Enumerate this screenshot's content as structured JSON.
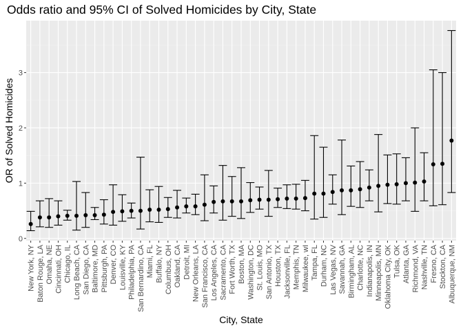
{
  "chart_data": {
    "type": "scatter",
    "title": "Odds ratio and 95% CI of Solved Homicides by City, State",
    "xlabel": "City, State",
    "ylabel": "OR of Solved Homicides",
    "ylim": [
      -0.04,
      3.94
    ],
    "yticks": [
      0,
      1,
      2,
      3
    ],
    "grid": true,
    "legend": "none",
    "colors": {
      "panel": "#ebebeb",
      "grid_major": "#ffffff",
      "grid_minor": "#f3f3f3",
      "marks": "#000000",
      "tick_text": "#4d4d4d"
    },
    "categories": [
      "New York, NY",
      "Baton Rouge, LA",
      "Omaha, NE",
      "Cincinnati, OH",
      "Chicago, IL",
      "Long Beach, CA",
      "San Diego, CA",
      "Baltimore, MD",
      "Pittsburgh, PA",
      "Denver, CO",
      "Louisville, KY",
      "Philadelphia, PA",
      "San Bernardino, CA",
      "Miami, FL",
      "Buffalo, NY",
      "Columbus, OH",
      "Oakland, CA",
      "Detroit, MI",
      "New Orleans, LA",
      "San Francisco, CA",
      "Los Angeles, CA",
      "Sacramento, CA",
      "Fort Worth, TX",
      "Boston, MA",
      "Washington, DC",
      "St. Louis, MO",
      "San Antonio, TX",
      "Houston, TX",
      "Jacksonville, FL",
      "Memphis, TN",
      "Milwaukee, wI",
      "Tampa, FL",
      "Durham, NC",
      "Las Vegas, NV",
      "Savannah, GA",
      "Birmingham, AL",
      "Charlotte, NC",
      "Indianapolis, IN",
      "Minneapolis, MN",
      "Oklahoma City, OK",
      "Tulsa, OK",
      "Atlanta, GA",
      "Richmond, VA",
      "Nashville, TN",
      "Fresno, CA",
      "Stockton, CA",
      "Albuquerque, NM"
    ],
    "estimate": [
      0.26,
      0.38,
      0.38,
      0.4,
      0.41,
      0.41,
      0.42,
      0.42,
      0.43,
      0.48,
      0.49,
      0.5,
      0.5,
      0.52,
      0.52,
      0.53,
      0.56,
      0.58,
      0.58,
      0.61,
      0.66,
      0.67,
      0.67,
      0.67,
      0.69,
      0.7,
      0.7,
      0.71,
      0.72,
      0.72,
      0.73,
      0.81,
      0.81,
      0.84,
      0.87,
      0.87,
      0.89,
      0.92,
      0.95,
      0.97,
      0.98,
      1.0,
      1.01,
      1.03,
      1.34,
      1.35,
      1.77
    ],
    "ci_low": [
      0.14,
      0.21,
      0.2,
      0.24,
      0.33,
      0.15,
      0.2,
      0.34,
      0.26,
      0.24,
      0.31,
      0.37,
      0.17,
      0.3,
      0.29,
      0.38,
      0.37,
      0.46,
      0.43,
      0.32,
      0.46,
      0.33,
      0.4,
      0.36,
      0.47,
      0.53,
      0.4,
      0.56,
      0.54,
      0.53,
      0.5,
      0.35,
      0.38,
      0.62,
      0.43,
      0.58,
      0.56,
      0.68,
      0.48,
      0.63,
      0.62,
      0.68,
      0.49,
      0.68,
      0.59,
      0.61,
      0.83
    ],
    "ci_high": [
      0.49,
      0.68,
      0.72,
      0.68,
      0.51,
      1.03,
      0.83,
      0.56,
      0.7,
      0.97,
      0.79,
      0.64,
      1.47,
      0.88,
      0.94,
      0.74,
      0.87,
      0.73,
      0.8,
      1.15,
      0.95,
      1.32,
      1.12,
      1.28,
      1.01,
      0.93,
      1.23,
      0.91,
      0.97,
      0.98,
      1.05,
      1.86,
      1.65,
      1.15,
      1.78,
      1.31,
      1.39,
      1.24,
      1.88,
      1.51,
      1.53,
      1.46,
      2.0,
      1.55,
      3.05,
      3.0,
      3.76
    ]
  }
}
